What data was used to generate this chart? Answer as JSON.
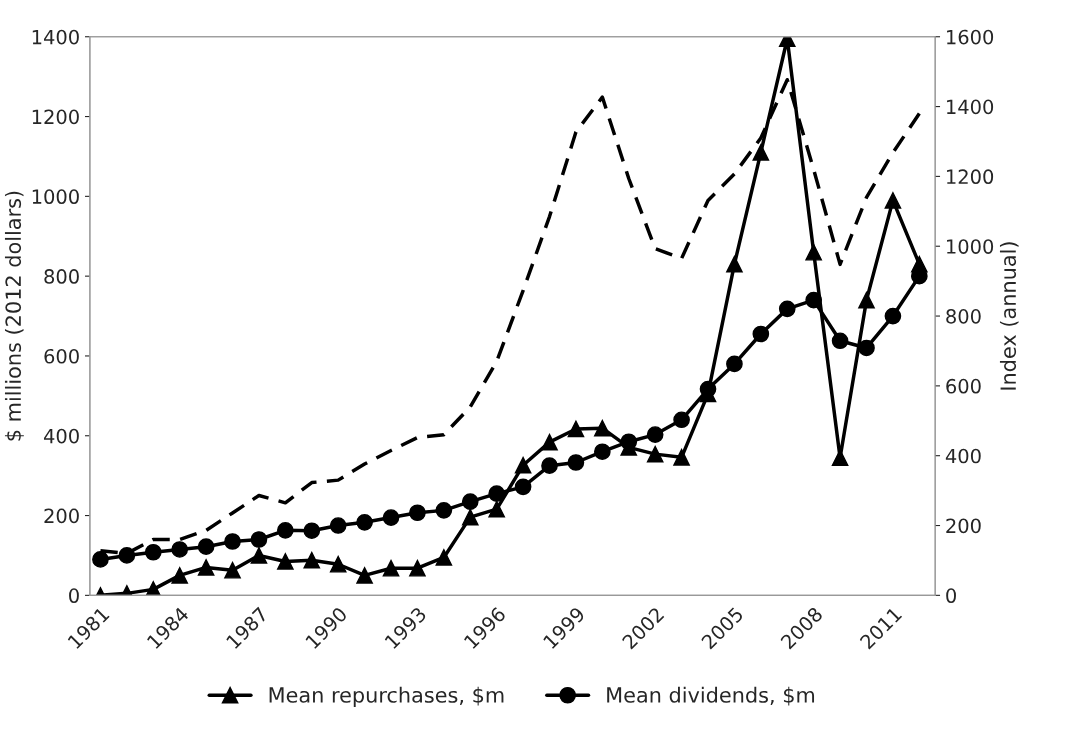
{
  "chart_data": {
    "type": "line",
    "ylabel": "$ millions (2012 dollars)",
    "y2label": "Index (annual)",
    "x": [
      1981,
      1982,
      1983,
      1984,
      1985,
      1986,
      1987,
      1988,
      1989,
      1990,
      1991,
      1992,
      1993,
      1994,
      1995,
      1996,
      1997,
      1998,
      1999,
      2000,
      2001,
      2002,
      2003,
      2004,
      2005,
      2006,
      2007,
      2008,
      2009,
      2010,
      2011,
      2012
    ],
    "series": [
      {
        "name": "Mean repurchases, $m",
        "color": "#000000",
        "marker": "triangle",
        "line_style": "solid",
        "values": [
          0,
          5,
          15,
          50,
          70,
          63,
          100,
          85,
          88,
          78,
          50,
          68,
          68,
          95,
          196,
          216,
          326,
          384,
          417,
          419,
          371,
          354,
          346,
          505,
          830,
          1110,
          1395,
          860,
          345,
          740,
          990,
          830
        ]
      },
      {
        "name": "Mean dividends, $m",
        "color": "#000000",
        "marker": "circle",
        "line_style": "solid",
        "values": [
          90,
          100,
          108,
          115,
          122,
          135,
          140,
          163,
          162,
          175,
          183,
          195,
          207,
          213,
          235,
          255,
          272,
          325,
          333,
          360,
          385,
          403,
          440,
          517,
          580,
          655,
          718,
          740,
          638,
          620,
          700,
          800
        ]
      },
      {
        "color": "#000000",
        "marker": "none",
        "line_style": "dashed",
        "axis": "y2",
        "values": [
          128,
          120,
          160,
          160,
          186,
          236,
          286,
          265,
          323,
          330,
          376,
          415,
          452,
          460,
          540,
          670,
          873,
          1085,
          1327,
          1427,
          1194,
          993,
          965,
          1131,
          1207,
          1310,
          1477,
          1220,
          948,
          1140,
          1268,
          1380
        ]
      }
    ],
    "xlim": [
      1980.6,
      2012.6
    ],
    "xticks": [
      1981,
      1984,
      1987,
      1990,
      1993,
      1996,
      1999,
      2002,
      2005,
      2008,
      2011
    ],
    "ylim": [
      0,
      1400
    ],
    "yticks": [
      0,
      200,
      400,
      600,
      800,
      1000,
      1200,
      1400
    ],
    "y2lim": [
      0,
      1600
    ],
    "y2ticks": [
      0,
      200,
      400,
      600,
      800,
      1000,
      1200,
      1400,
      1600
    ],
    "grid": false,
    "legend": "bottom"
  }
}
